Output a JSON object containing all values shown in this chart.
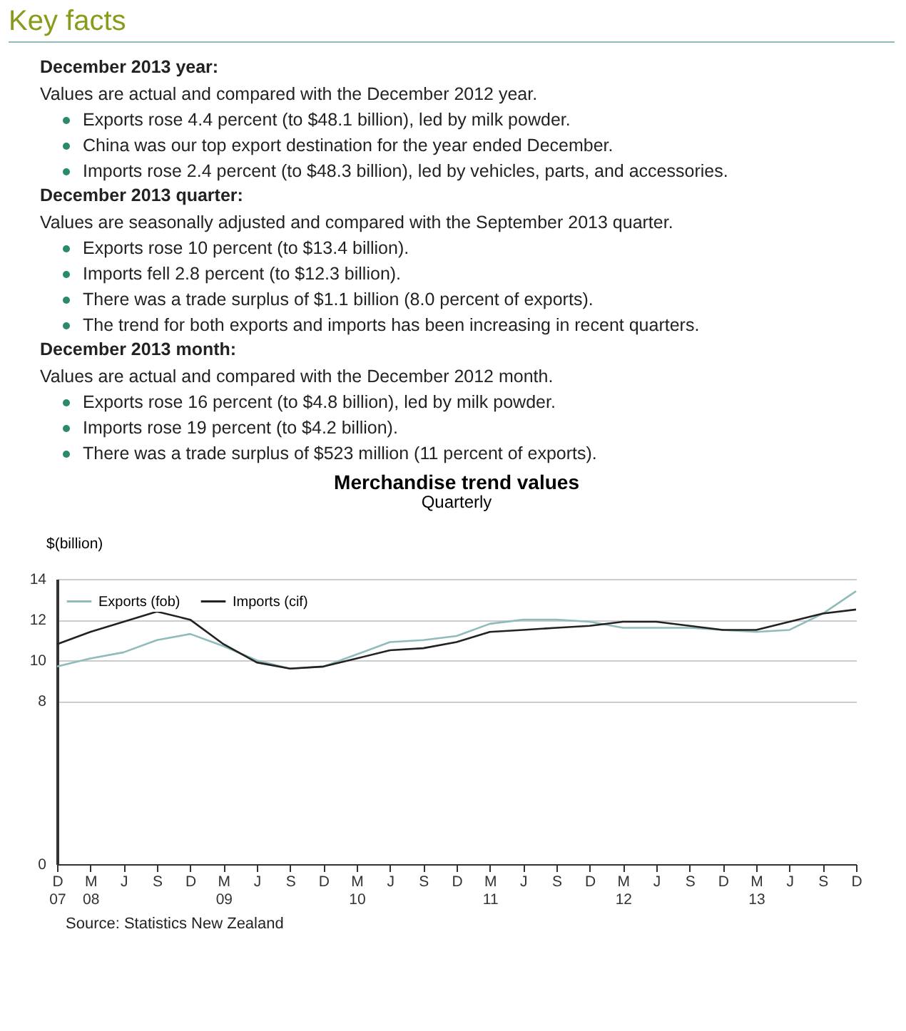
{
  "chart_data": {
    "type": "line",
    "title": "Merchandise trend values",
    "subtitle": "Quarterly",
    "ylabel": "$(billion)",
    "categories": [
      "D\n07",
      "M\n08",
      "J",
      "S",
      "D",
      "M\n09",
      "J",
      "S",
      "D",
      "M\n10",
      "J",
      "S",
      "D",
      "M\n11",
      "J",
      "S",
      "D",
      "M\n12",
      "J",
      "S",
      "D",
      "M\n13",
      "J",
      "S",
      "D"
    ],
    "series": [
      {
        "name": "Exports (fob)",
        "color": "#8fbcbb",
        "values": [
          9.7,
          10.1,
          10.4,
          11.0,
          11.3,
          10.7,
          10.0,
          9.6,
          9.7,
          10.3,
          10.9,
          11.0,
          11.2,
          11.8,
          12.0,
          12.0,
          11.9,
          11.6,
          11.6,
          11.6,
          11.5,
          11.4,
          11.5,
          12.3,
          13.4
        ]
      },
      {
        "name": "Imports (cif)",
        "color": "#222222",
        "values": [
          10.8,
          11.4,
          11.9,
          12.4,
          12.0,
          10.8,
          9.9,
          9.6,
          9.7,
          10.1,
          10.5,
          10.6,
          10.9,
          11.4,
          11.5,
          11.6,
          11.7,
          11.9,
          11.9,
          11.7,
          11.5,
          11.5,
          11.9,
          12.3,
          12.5
        ]
      }
    ],
    "ylim": [
      0,
      14
    ],
    "yticks": [
      0,
      8,
      10,
      12,
      14
    ],
    "grid": "y",
    "legend": "top left",
    "marker": "none",
    "line_style": "solid",
    "annotations": [
      "Key facts",
      "December 2013 year:",
      "Values are actual and compared with the December 2012 year.",
      "Exports rose 4.4 percent (to $48.1 billion), led by milk powder.",
      "China was our top export destination for the year ended December.",
      "Imports rose 2.4 percent (to $48.3 billion), led by vehicles, parts, and accessories.",
      "December 2013 quarter:",
      "Values are seasonally adjusted and compared with the September 2013 quarter.",
      "Exports rose 10 percent (to $13.4 billion).",
      "Imports fell 2.8 percent (to $12.3 billion).",
      "There was a trade surplus of $1.1 billion (8.0 percent of exports).",
      "The trend for both exports and imports has been increasing in recent quarters.",
      "December 2013 month:",
      "Values are actual and compared with the December 2012 month.",
      "Exports rose 16 percent (to $4.8 billion), led by milk powder.",
      "Imports rose 19 percent (to $4.2 billion).",
      "There was a trade surplus of $523 million (11 percent of exports).",
      "Source: Statistics New Zealand"
    ]
  }
}
